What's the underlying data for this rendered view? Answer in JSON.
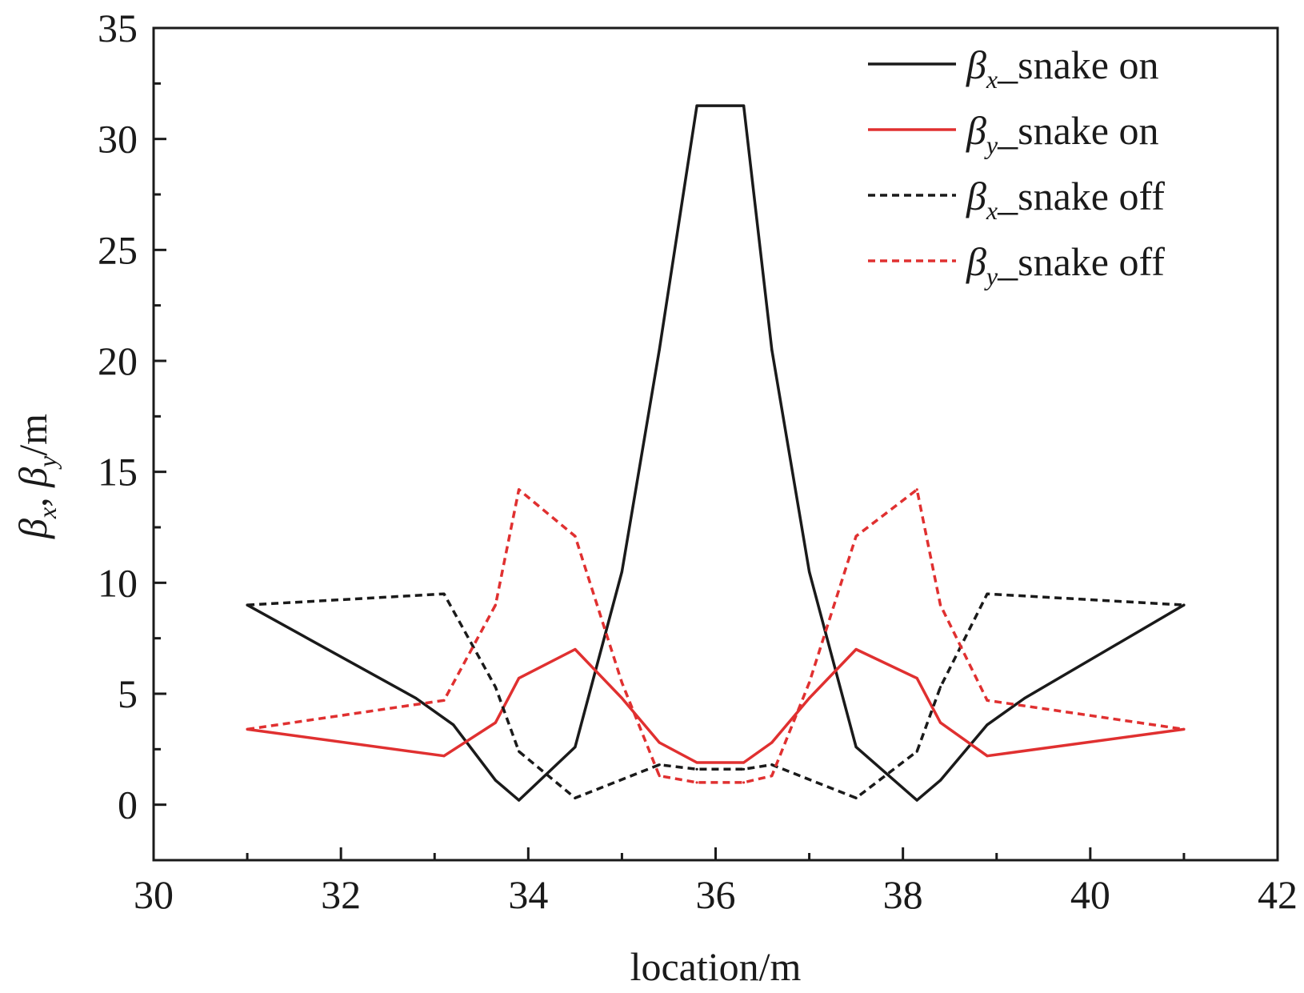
{
  "chart_data": {
    "type": "line",
    "xlabel": "location/m",
    "ylabel": "βx, βy/m",
    "ylabel_parts": {
      "sym1": "β",
      "sub1": "x",
      "sep": ", ",
      "sym2": "β",
      "sub2": "y",
      "unit": "/m"
    },
    "xlim": [
      30,
      42
    ],
    "ylim": [
      -2.5,
      35
    ],
    "xticks": [
      30,
      32,
      34,
      36,
      38,
      40,
      42
    ],
    "yticks": [
      0,
      5,
      10,
      15,
      20,
      25,
      30,
      35
    ],
    "grid": false,
    "legend_position": "top-right",
    "series": [
      {
        "name": "βx_snake on",
        "legend": {
          "sym": "β",
          "sub": "x",
          "text": "_snake on"
        },
        "color": "#1a1a1a",
        "style": "solid",
        "x": [
          31.0,
          32.8,
          33.2,
          33.65,
          33.9,
          34.5,
          35.0,
          35.4,
          35.8,
          36.3,
          36.6,
          37.0,
          37.5,
          38.15,
          38.4,
          38.9,
          39.3,
          41.0
        ],
        "y": [
          9.0,
          4.8,
          3.6,
          1.1,
          0.2,
          2.6,
          10.5,
          20.5,
          31.5,
          31.5,
          20.5,
          10.5,
          2.6,
          0.2,
          1.1,
          3.6,
          4.8,
          9.0
        ]
      },
      {
        "name": "βy_snake on",
        "legend": {
          "sym": "β",
          "sub": "y",
          "text": "_snake on"
        },
        "color": "#e03030",
        "style": "solid",
        "x": [
          31.0,
          33.1,
          33.65,
          33.9,
          34.5,
          35.0,
          35.4,
          35.8,
          36.3,
          36.6,
          37.0,
          37.5,
          38.15,
          38.4,
          38.9,
          41.0
        ],
        "y": [
          3.4,
          2.2,
          3.7,
          5.7,
          7.0,
          4.8,
          2.8,
          1.9,
          1.9,
          2.8,
          4.8,
          7.0,
          5.7,
          3.7,
          2.2,
          3.4
        ]
      },
      {
        "name": "βx_snake off",
        "legend": {
          "sym": "β",
          "sub": "x",
          "text": "_snake off"
        },
        "color": "#1a1a1a",
        "style": "dashed",
        "x": [
          31.0,
          33.1,
          33.65,
          33.9,
          34.5,
          35.4,
          35.8,
          36.3,
          36.6,
          37.5,
          38.15,
          38.4,
          38.9,
          41.0
        ],
        "y": [
          9.0,
          9.5,
          5.3,
          2.4,
          0.3,
          1.8,
          1.6,
          1.6,
          1.8,
          0.3,
          2.4,
          5.3,
          9.5,
          9.0
        ]
      },
      {
        "name": "βy_snake off",
        "legend": {
          "sym": "β",
          "sub": "y",
          "text": "_snake off"
        },
        "color": "#e03030",
        "style": "dashed",
        "x": [
          31.0,
          33.1,
          33.65,
          33.9,
          34.5,
          35.0,
          35.4,
          35.8,
          36.3,
          36.6,
          37.0,
          37.5,
          38.15,
          38.4,
          38.9,
          41.0
        ],
        "y": [
          3.4,
          4.7,
          9.0,
          14.2,
          12.1,
          5.5,
          1.3,
          1.0,
          1.0,
          1.3,
          5.5,
          12.1,
          14.2,
          9.0,
          4.7,
          3.4
        ]
      }
    ]
  }
}
